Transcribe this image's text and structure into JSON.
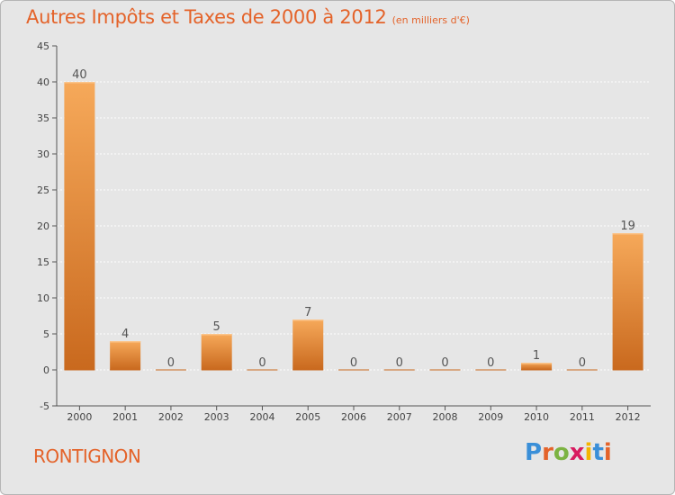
{
  "title": "Autres Impôts et Taxes de 2000 à 2012",
  "subtitle": "(en milliers d'€)",
  "commune": "RONTIGNON",
  "logo": {
    "text": "Proxiti",
    "letter_colors": [
      "#3a8fd8",
      "#e4632a",
      "#7cb342",
      "#d81b60",
      "#f4b400",
      "#3a8fd8",
      "#e4632a"
    ]
  },
  "colors": {
    "accent": "#e4632a",
    "bar_top": "#f6a95a",
    "bar_bottom": "#c9691e",
    "plot_bg": "#e6e6e6",
    "grid": "#ffffff"
  },
  "chart_data": {
    "type": "bar",
    "categories": [
      "2000",
      "2001",
      "2002",
      "2003",
      "2004",
      "2005",
      "2006",
      "2007",
      "2008",
      "2009",
      "2010",
      "2011",
      "2012"
    ],
    "values": [
      40,
      4,
      0,
      5,
      0,
      7,
      0,
      0,
      0,
      0,
      1,
      0,
      19
    ],
    "data_labels": [
      "40",
      "4",
      "0",
      "5",
      "0",
      "7",
      "0",
      "0",
      "0",
      "0",
      "1",
      "0",
      "19"
    ],
    "title": "Autres Impôts et Taxes de 2000 à 2012",
    "subtitle": "(en milliers d'€)",
    "xlabel": "",
    "ylabel": "",
    "ylim": [
      -5,
      45
    ],
    "yticks": [
      -5,
      0,
      5,
      10,
      15,
      20,
      25,
      30,
      35,
      40,
      45
    ],
    "grid": true,
    "legend": "none"
  }
}
